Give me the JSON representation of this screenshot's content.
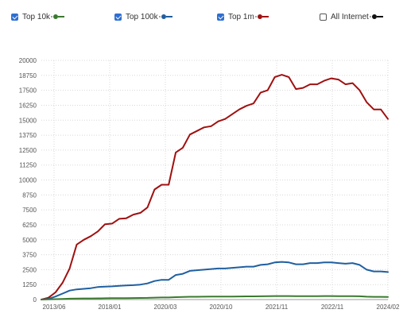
{
  "legend": {
    "items": [
      {
        "label": "Top 10k",
        "checked": true,
        "color": "#3a7a2e"
      },
      {
        "label": "Top 100k",
        "checked": true,
        "color": "#1f5fa0"
      },
      {
        "label": "Top 1m",
        "checked": true,
        "color": "#a01010"
      },
      {
        "label": "All Internet",
        "checked": false,
        "color": "#111111"
      }
    ]
  },
  "chart_data": {
    "type": "line",
    "title": "",
    "xlabel": "",
    "ylabel": "",
    "ylim": [
      0,
      20000
    ],
    "yticks": [
      0,
      1250,
      2500,
      3750,
      5000,
      6250,
      7500,
      8750,
      10000,
      11250,
      12500,
      13750,
      15000,
      16250,
      17500,
      18750,
      20000
    ],
    "ytick_labels": [
      "0",
      "1250",
      "2500",
      "3750",
      "5000",
      "6250",
      "7500",
      "8750",
      "10000",
      "11250",
      "12500",
      "13750",
      "15000",
      "16250",
      "17500",
      "18750",
      "20000"
    ],
    "xticks": [
      "2013/06",
      "2018/01",
      "2020/03",
      "2020/10",
      "2021/11",
      "2022/11",
      "2024/02"
    ],
    "grid": true,
    "series": [
      {
        "name": "Top 1m",
        "color": "#a01010",
        "points": [
          [
            0,
            0
          ],
          [
            1,
            150
          ],
          [
            2,
            600
          ],
          [
            3,
            1400
          ],
          [
            4,
            2600
          ],
          [
            5,
            4600
          ],
          [
            6,
            5000
          ],
          [
            7,
            5300
          ],
          [
            8,
            5700
          ],
          [
            9,
            6300
          ],
          [
            10,
            6350
          ],
          [
            11,
            6750
          ],
          [
            12,
            6800
          ],
          [
            13,
            7100
          ],
          [
            14,
            7250
          ],
          [
            15,
            7700
          ],
          [
            16,
            9200
          ],
          [
            17,
            9600
          ],
          [
            18,
            9600
          ],
          [
            19,
            12300
          ],
          [
            20,
            12700
          ],
          [
            21,
            13800
          ],
          [
            22,
            14100
          ],
          [
            23,
            14400
          ],
          [
            24,
            14500
          ],
          [
            25,
            14900
          ],
          [
            26,
            15100
          ],
          [
            27,
            15500
          ],
          [
            28,
            15900
          ],
          [
            29,
            16200
          ],
          [
            30,
            16400
          ],
          [
            31,
            17300
          ],
          [
            32,
            17500
          ],
          [
            33,
            18600
          ],
          [
            34,
            18800
          ],
          [
            35,
            18600
          ],
          [
            36,
            17600
          ],
          [
            37,
            17700
          ],
          [
            38,
            18000
          ],
          [
            39,
            18000
          ],
          [
            40,
            18300
          ],
          [
            41,
            18500
          ],
          [
            42,
            18400
          ],
          [
            43,
            18000
          ],
          [
            44,
            18100
          ],
          [
            45,
            17500
          ],
          [
            46,
            16500
          ],
          [
            47,
            15900
          ],
          [
            48,
            15900
          ],
          [
            49,
            15100
          ]
        ]
      },
      {
        "name": "Top 100k",
        "color": "#1f5fa0",
        "points": [
          [
            0,
            0
          ],
          [
            1,
            50
          ],
          [
            2,
            250
          ],
          [
            3,
            500
          ],
          [
            4,
            750
          ],
          [
            5,
            850
          ],
          [
            6,
            900
          ],
          [
            7,
            950
          ],
          [
            8,
            1050
          ],
          [
            9,
            1080
          ],
          [
            10,
            1100
          ],
          [
            11,
            1150
          ],
          [
            12,
            1180
          ],
          [
            13,
            1200
          ],
          [
            14,
            1250
          ],
          [
            15,
            1350
          ],
          [
            16,
            1550
          ],
          [
            17,
            1650
          ],
          [
            18,
            1650
          ],
          [
            19,
            2050
          ],
          [
            20,
            2150
          ],
          [
            21,
            2400
          ],
          [
            22,
            2450
          ],
          [
            23,
            2500
          ],
          [
            24,
            2550
          ],
          [
            25,
            2600
          ],
          [
            26,
            2600
          ],
          [
            27,
            2650
          ],
          [
            28,
            2700
          ],
          [
            29,
            2750
          ],
          [
            30,
            2750
          ],
          [
            31,
            2900
          ],
          [
            32,
            2950
          ],
          [
            33,
            3100
          ],
          [
            34,
            3150
          ],
          [
            35,
            3100
          ],
          [
            36,
            2950
          ],
          [
            37,
            2950
          ],
          [
            38,
            3050
          ],
          [
            39,
            3050
          ],
          [
            40,
            3100
          ],
          [
            41,
            3100
          ],
          [
            42,
            3050
          ],
          [
            43,
            3000
          ],
          [
            44,
            3050
          ],
          [
            45,
            2900
          ],
          [
            46,
            2500
          ],
          [
            47,
            2350
          ],
          [
            48,
            2350
          ],
          [
            49,
            2300
          ]
        ]
      },
      {
        "name": "Top 10k",
        "color": "#3a7a2e",
        "points": [
          [
            0,
            0
          ],
          [
            1,
            10
          ],
          [
            2,
            30
          ],
          [
            3,
            50
          ],
          [
            4,
            70
          ],
          [
            5,
            80
          ],
          [
            6,
            90
          ],
          [
            7,
            95
          ],
          [
            8,
            100
          ],
          [
            9,
            105
          ],
          [
            10,
            110
          ],
          [
            11,
            115
          ],
          [
            12,
            120
          ],
          [
            13,
            125
          ],
          [
            14,
            130
          ],
          [
            15,
            140
          ],
          [
            16,
            160
          ],
          [
            17,
            170
          ],
          [
            18,
            170
          ],
          [
            19,
            200
          ],
          [
            20,
            210
          ],
          [
            21,
            230
          ],
          [
            22,
            235
          ],
          [
            23,
            240
          ],
          [
            24,
            245
          ],
          [
            25,
            250
          ],
          [
            26,
            250
          ],
          [
            27,
            255
          ],
          [
            28,
            260
          ],
          [
            29,
            265
          ],
          [
            30,
            265
          ],
          [
            31,
            275
          ],
          [
            32,
            280
          ],
          [
            33,
            290
          ],
          [
            34,
            295
          ],
          [
            35,
            290
          ],
          [
            36,
            280
          ],
          [
            37,
            280
          ],
          [
            38,
            285
          ],
          [
            39,
            285
          ],
          [
            40,
            290
          ],
          [
            41,
            290
          ],
          [
            42,
            285
          ],
          [
            43,
            280
          ],
          [
            44,
            285
          ],
          [
            45,
            270
          ],
          [
            46,
            240
          ],
          [
            47,
            225
          ],
          [
            48,
            225
          ],
          [
            49,
            220
          ]
        ]
      }
    ]
  }
}
